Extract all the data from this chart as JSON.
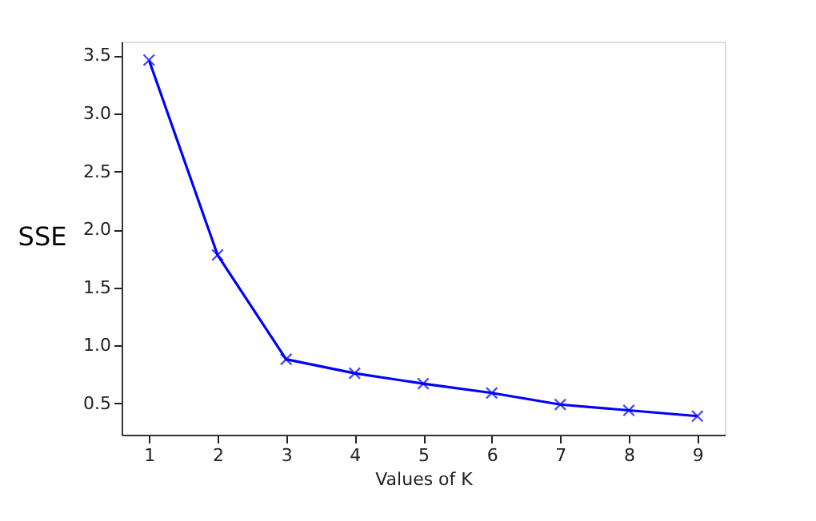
{
  "chart_data": {
    "type": "line",
    "xlabel": "Values of K",
    "ylabel": "SSE",
    "x": [
      1,
      2,
      3,
      4,
      5,
      6,
      7,
      8,
      9
    ],
    "series": [
      {
        "color": "#0000ff",
        "values": [
          3.46,
          1.78,
          0.88,
          0.76,
          0.67,
          0.59,
          0.49,
          0.44,
          0.39
        ]
      }
    ],
    "xlim": [
      0.6,
      9.4
    ],
    "xticks": [
      1,
      2,
      3,
      4,
      5,
      6,
      7,
      8,
      9
    ],
    "ylim": [
      0.23,
      3.62
    ],
    "yticks": [
      0.5,
      {
        "value": 1,
        "label": "1.0"
      },
      1.5,
      {
        "value": 2,
        "label": "2.0"
      },
      2.5,
      {
        "value": 3,
        "label": "3.0"
      },
      3.5
    ],
    "grid": false,
    "marker": "cross",
    "line_style": "solid"
  }
}
